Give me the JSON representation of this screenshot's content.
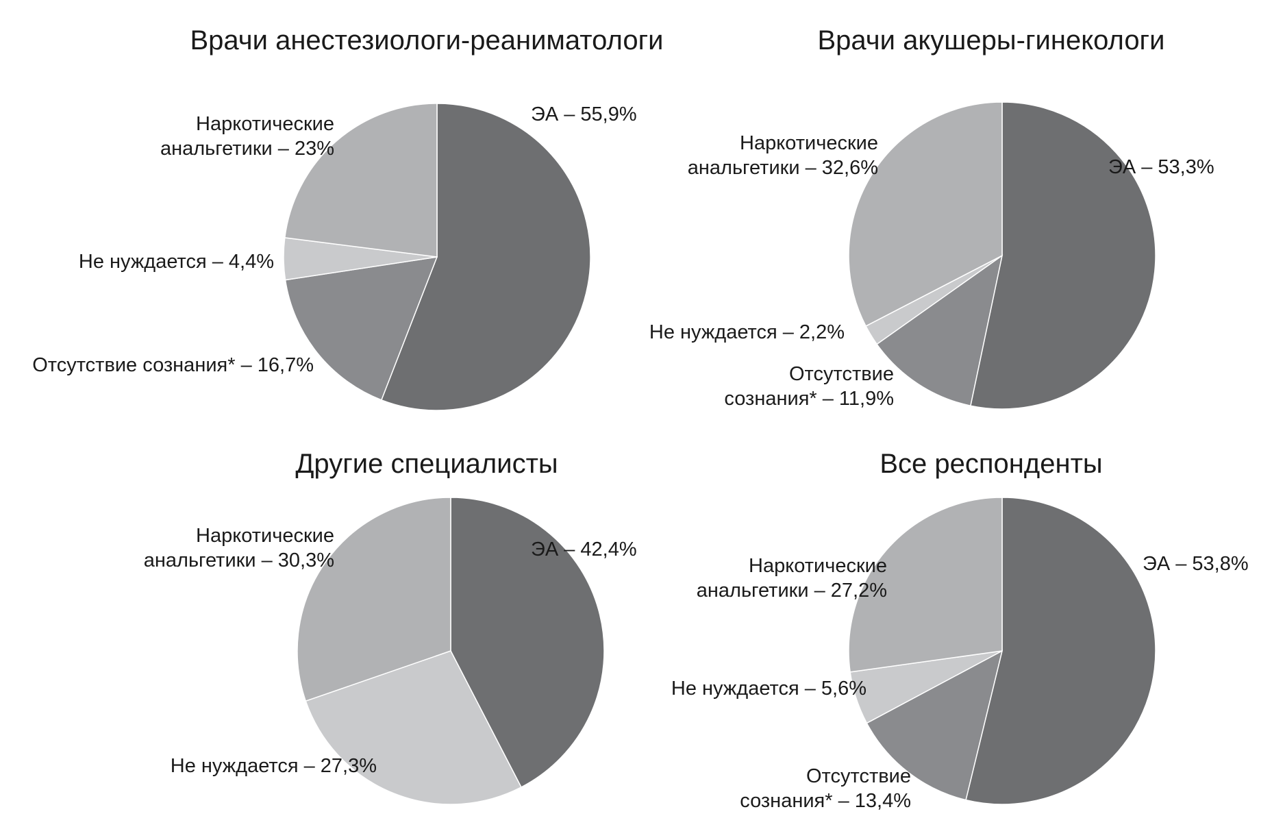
{
  "colors": {
    "ЭА": "#6e6f71",
    "Отсутствие сознания": "#8a8b8e",
    "Не нуждается": "#c9cacc",
    "Наркотические анальгетики": "#b1b2b4"
  },
  "chart_data": [
    {
      "type": "pie",
      "title": "Врачи анестезиологи-реаниматологи",
      "slices": [
        {
          "key": "ЭА",
          "value": 55.9,
          "label_lines": [
            "ЭА – 55,9%"
          ]
        },
        {
          "key": "Отсутствие сознания",
          "value": 16.7,
          "label_lines": [
            "Отсутствие сознания* – 16,7%"
          ]
        },
        {
          "key": "Не нуждается",
          "value": 4.4,
          "label_lines": [
            "Не нуждается – 4,4%"
          ]
        },
        {
          "key": "Наркотические анальгетики",
          "value": 23,
          "label_lines": [
            "Наркотические",
            "анальгетики – 23%"
          ]
        }
      ]
    },
    {
      "type": "pie",
      "title": "Врачи акушеры-гинекологи",
      "slices": [
        {
          "key": "ЭА",
          "value": 53.3,
          "label_lines": [
            "ЭА – 53,3%"
          ]
        },
        {
          "key": "Отсутствие сознания",
          "value": 11.9,
          "label_lines": [
            "Отсутствие",
            "сознания* – 11,9%"
          ]
        },
        {
          "key": "Не нуждается",
          "value": 2.2,
          "label_lines": [
            "Не нуждается – 2,2%"
          ]
        },
        {
          "key": "Наркотические анальгетики",
          "value": 32.6,
          "label_lines": [
            "Наркотические",
            "анальгетики – 32,6%"
          ]
        }
      ]
    },
    {
      "type": "pie",
      "title": "Другие специалисты",
      "slices": [
        {
          "key": "ЭА",
          "value": 42.4,
          "label_lines": [
            "ЭА – 42,4%"
          ]
        },
        {
          "key": "Не нуждается",
          "value": 27.3,
          "label_lines": [
            "Не нуждается – 27,3%"
          ]
        },
        {
          "key": "Наркотические анальгетики",
          "value": 30.3,
          "label_lines": [
            "Наркотические",
            "анальгетики – 30,3%"
          ]
        }
      ]
    },
    {
      "type": "pie",
      "title": "Все респонденты",
      "slices": [
        {
          "key": "ЭА",
          "value": 53.8,
          "label_lines": [
            "ЭА – 53,8%"
          ]
        },
        {
          "key": "Отсутствие сознания",
          "value": 13.4,
          "label_lines": [
            "Отсутствие",
            "сознания* – 13,4%"
          ]
        },
        {
          "key": "Не нуждается",
          "value": 5.6,
          "label_lines": [
            "Не нуждается – 5,6%"
          ]
        },
        {
          "key": "Наркотические анальгетики",
          "value": 27.2,
          "label_lines": [
            "Наркотические",
            "анальгетики – 27,2%"
          ]
        }
      ]
    }
  ]
}
